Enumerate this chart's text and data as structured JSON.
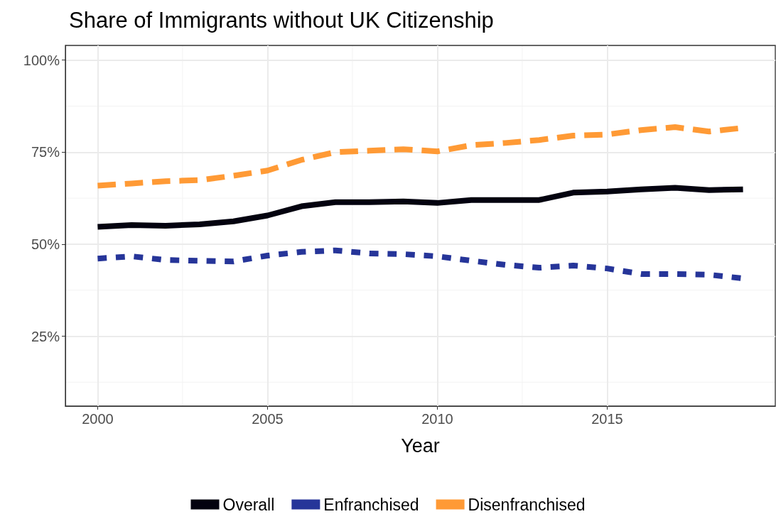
{
  "chart_data": {
    "type": "line",
    "title": "Share of Immigrants without UK Citizenship",
    "xlabel": "Year",
    "x": [
      2000,
      2001,
      2002,
      2003,
      2004,
      2005,
      2006,
      2007,
      2008,
      2009,
      2010,
      2011,
      2012,
      2013,
      2014,
      2015,
      2016,
      2017,
      2018,
      2019
    ],
    "series": [
      {
        "name": "Overall",
        "color": "#03020f",
        "line_style": "solid",
        "values": [
          54.7,
          55.2,
          55.0,
          55.4,
          56.2,
          57.8,
          60.3,
          61.4,
          61.4,
          61.6,
          61.2,
          62.0,
          62.0,
          62.0,
          64.0,
          64.3,
          64.9,
          65.3,
          64.7,
          64.9
        ]
      },
      {
        "name": "Enfranchised",
        "color": "#263599",
        "line_style": "dotted",
        "values": [
          46.1,
          46.7,
          45.7,
          45.5,
          45.3,
          46.9,
          47.9,
          48.3,
          47.5,
          47.3,
          46.7,
          45.5,
          44.4,
          43.6,
          44.2,
          43.4,
          41.9,
          41.9,
          41.7,
          40.7
        ]
      },
      {
        "name": "Disenfranchised",
        "color": "#ff9a35",
        "line_style": "dashed",
        "values": [
          65.9,
          66.5,
          67.1,
          67.4,
          68.6,
          70.0,
          72.9,
          75.0,
          75.4,
          75.8,
          75.2,
          76.9,
          77.5,
          78.3,
          79.5,
          79.8,
          81.0,
          81.8,
          80.6,
          81.6
        ]
      }
    ],
    "xlim": [
      1999.05,
      2019.95
    ],
    "xticks": [
      2000,
      2005,
      2010,
      2015
    ],
    "ylim": [
      6,
      104
    ],
    "yticks": [
      {
        "value": 25,
        "label": "25%"
      },
      {
        "value": 50,
        "label": "50%"
      },
      {
        "value": 75,
        "label": "75%"
      },
      {
        "value": 100,
        "label": "100%"
      }
    ],
    "grid": true,
    "legend": "bottom",
    "marker": "none"
  }
}
